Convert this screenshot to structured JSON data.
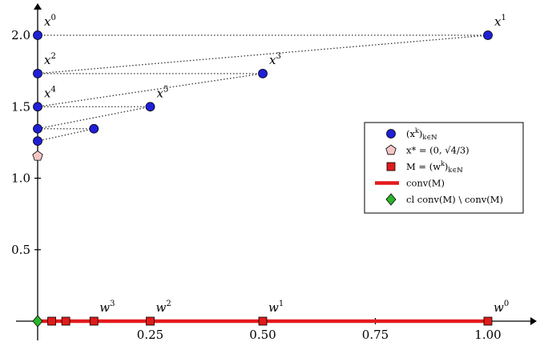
{
  "chart_data": {
    "type": "scatter",
    "title": "",
    "xlabel": "",
    "ylabel": "",
    "xlim": [
      0,
      1.05
    ],
    "ylim": [
      0,
      2.18
    ],
    "x_ticks": [
      0.25,
      0.5,
      0.75,
      1.0
    ],
    "x_tick_labels": [
      "0.25",
      "0.50",
      "0.75",
      "1.00"
    ],
    "y_ticks": [
      0.5,
      1.0,
      1.5,
      2.0
    ],
    "y_tick_labels": [
      "0.5",
      "1.0",
      "1.5",
      "2.0"
    ],
    "grid": false,
    "legend_position": "right",
    "colors": {
      "x_seq": "#1f1fd6",
      "x_star": "#f5c6c6",
      "w_seq": "#e01b1b",
      "conv": "#e41a1c",
      "closure": "#2bb52b",
      "dotted": "#333333"
    },
    "x_sequence": {
      "legend": "(x^k)_{k∈ℕ}",
      "points": [
        {
          "x": 0,
          "y": 2.0,
          "label": "x",
          "sup": "0"
        },
        {
          "x": 1.0,
          "y": 2.0,
          "label": "x",
          "sup": "1"
        },
        {
          "x": 0,
          "y": 1.732,
          "label": "x",
          "sup": "2"
        },
        {
          "x": 0.5,
          "y": 1.732,
          "label": "x",
          "sup": "3"
        },
        {
          "x": 0,
          "y": 1.5,
          "label": "x",
          "sup": "4"
        },
        {
          "x": 0.25,
          "y": 1.5,
          "label": "x",
          "sup": "5"
        },
        {
          "x": 0,
          "y": 1.346,
          "label": "",
          "sup": ""
        },
        {
          "x": 0.125,
          "y": 1.346,
          "label": "",
          "sup": ""
        },
        {
          "x": 0,
          "y": 1.26,
          "label": "",
          "sup": ""
        }
      ],
      "links": [
        [
          0,
          1
        ],
        [
          1,
          2
        ],
        [
          2,
          3
        ],
        [
          3,
          4
        ],
        [
          4,
          5
        ],
        [
          5,
          6
        ],
        [
          6,
          7
        ],
        [
          7,
          8
        ]
      ]
    },
    "x_star": {
      "legend": "x* = (0, √(4/3))",
      "x": 0,
      "y": 1.1547
    },
    "w_sequence": {
      "legend": "M = (w^k)_{k∈ℕ}",
      "points": [
        {
          "x": 1.0,
          "y": 0,
          "label": "w",
          "sup": "0"
        },
        {
          "x": 0.5,
          "y": 0,
          "label": "w",
          "sup": "1"
        },
        {
          "x": 0.25,
          "y": 0,
          "label": "w",
          "sup": "2"
        },
        {
          "x": 0.125,
          "y": 0,
          "label": "w",
          "sup": "3"
        },
        {
          "x": 0.0625,
          "y": 0,
          "label": "",
          "sup": ""
        },
        {
          "x": 0.03125,
          "y": 0,
          "label": "",
          "sup": ""
        }
      ]
    },
    "conv": {
      "legend": "conv(M)",
      "x_range": [
        0,
        1.0
      ]
    },
    "closure_point": {
      "legend": "cl conv(M) \\ conv(M)",
      "x": 0,
      "y": 0
    },
    "legend_entries": [
      {
        "kind": "circle",
        "text": "(x",
        "sup": "k",
        "after": ")",
        "sub": "k∈ℕ"
      },
      {
        "kind": "pentagon",
        "text": "x* = (0, √4/3)",
        "sup": "",
        "after": "",
        "sub": ""
      },
      {
        "kind": "square",
        "text": "M = (w",
        "sup": "k",
        "after": ")",
        "sub": "k∈ℕ"
      },
      {
        "kind": "line",
        "text": "conv(M)",
        "sup": "",
        "after": "",
        "sub": ""
      },
      {
        "kind": "diamond",
        "text": "cl conv(M) \\ conv(M)",
        "sup": "",
        "after": "",
        "sub": ""
      }
    ]
  }
}
